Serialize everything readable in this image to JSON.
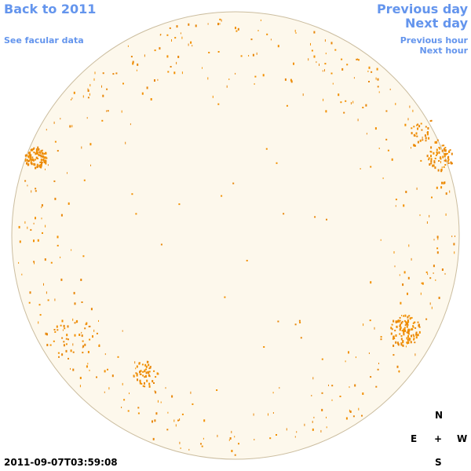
{
  "navigation": {
    "back": "Back to 2011",
    "facular": "See facular data",
    "previous_day": "Previous day",
    "next_day": "Next day",
    "previous_hour": "Previous hour",
    "next_hour": "Next hour"
  },
  "compass": {
    "north": "N",
    "east": "E",
    "center": "+",
    "west": "W",
    "south": "S"
  },
  "timestamp": "2011-09-07T03:59:08"
}
